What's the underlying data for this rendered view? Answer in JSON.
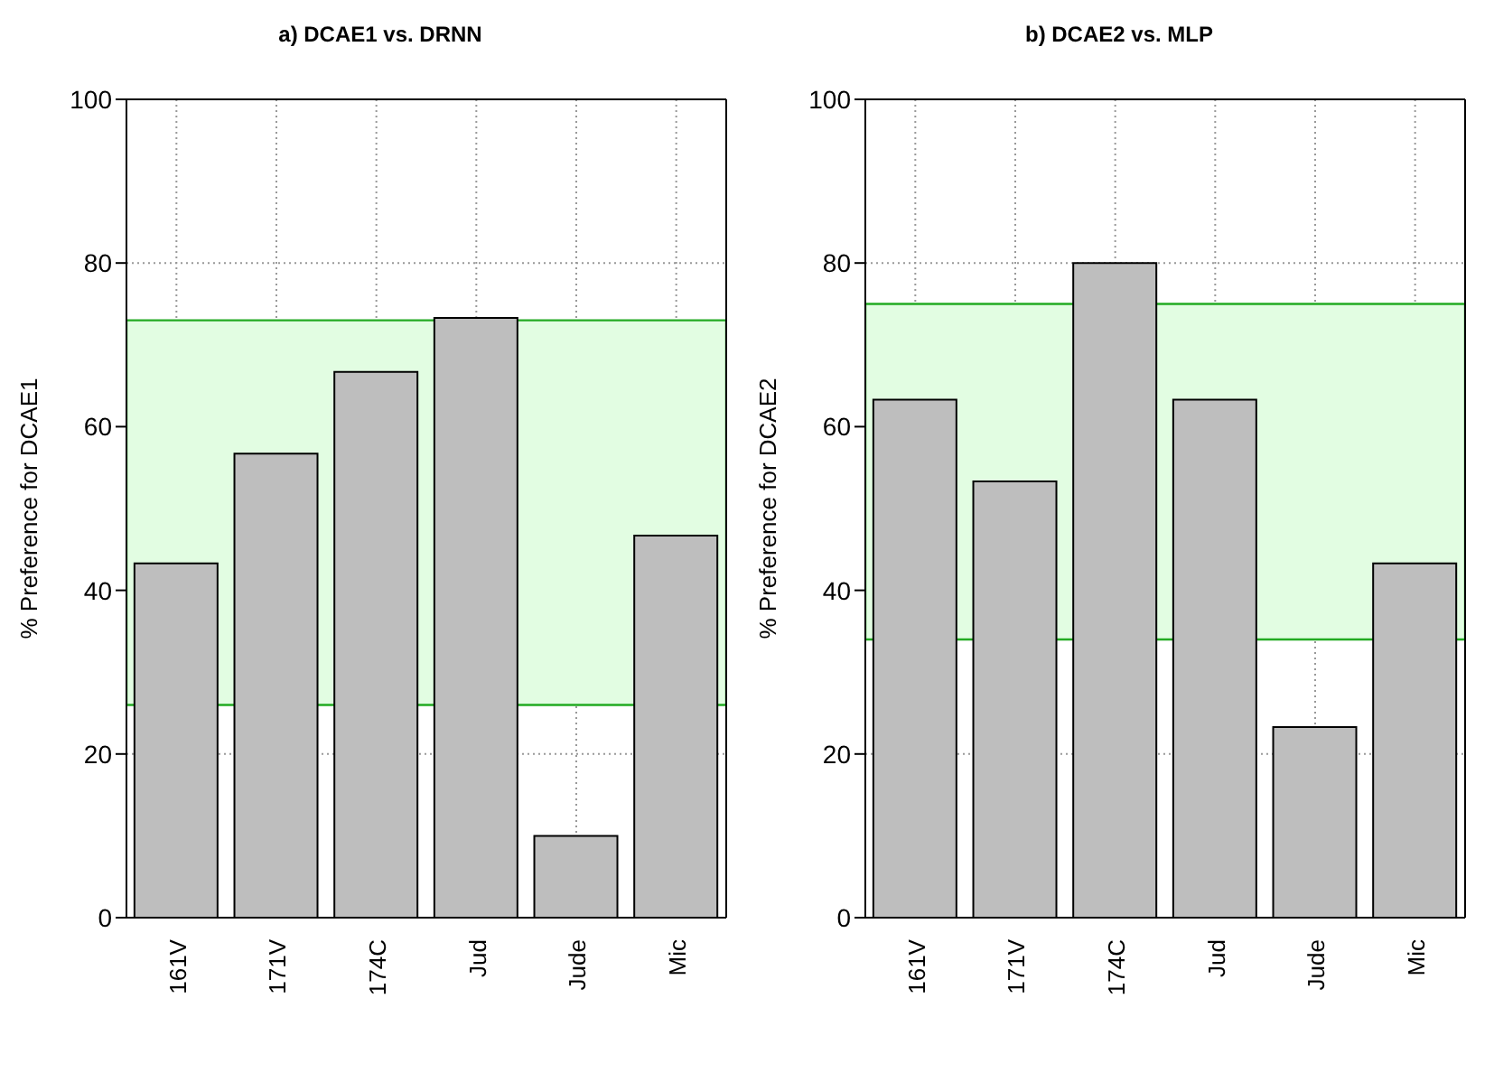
{
  "chart_data": [
    {
      "type": "bar",
      "title": "a) DCAE1 vs. DRNN",
      "ylabel": "% Preference for DCAE1",
      "categories": [
        "161V",
        "171V",
        "174C",
        "Jud",
        "Jude",
        "Mic"
      ],
      "values": [
        43.3,
        56.7,
        66.7,
        73.3,
        10,
        46.7
      ],
      "color": "#bebebe",
      "ylim": [
        0,
        100
      ],
      "yticks": [
        0,
        20,
        40,
        60,
        80,
        100
      ],
      "grid": true,
      "bands": [
        {
          "axis": "y",
          "from": 26,
          "to": 73,
          "color": "#e2fde2"
        }
      ]
    },
    {
      "type": "bar",
      "title": "b) DCAE2 vs. MLP",
      "ylabel": "% Preference for DCAE2",
      "categories": [
        "161V",
        "171V",
        "174C",
        "Jud",
        "Jude",
        "Mic"
      ],
      "values": [
        63.3,
        53.3,
        80,
        63.3,
        23.3,
        43.3
      ],
      "color": "#bebebe",
      "ylim": [
        0,
        100
      ],
      "yticks": [
        0,
        20,
        40,
        60,
        80,
        100
      ],
      "grid": true,
      "bands": [
        {
          "axis": "y",
          "from": 34,
          "to": 75,
          "color": "#e2fde2"
        }
      ]
    }
  ]
}
